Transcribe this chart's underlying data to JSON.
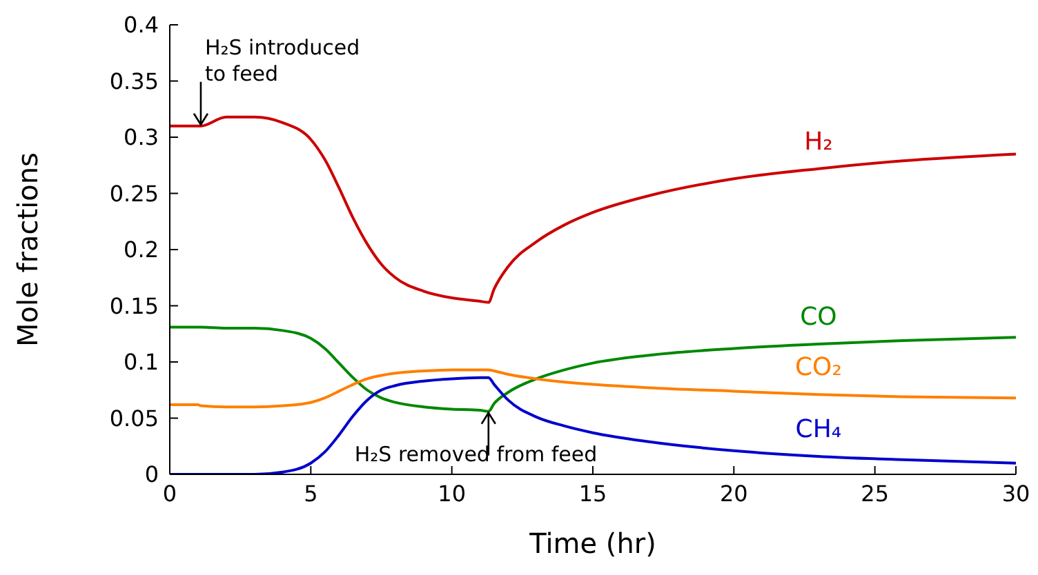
{
  "chart_data": {
    "type": "line",
    "xlabel": "Time (hr)",
    "ylabel": "Mole fractions",
    "x": [
      0,
      1,
      1.1,
      2,
      3,
      4,
      5,
      5.5,
      6,
      6.5,
      7,
      7.5,
      8,
      9,
      10,
      11,
      11.3,
      11.5,
      12,
      13,
      14,
      15,
      17,
      20,
      23,
      26,
      30
    ],
    "series": [
      {
        "name": "H₂",
        "color": "#cc0000",
        "values": [
          0.31,
          0.31,
          0.31,
          0.318,
          0.318,
          0.313,
          0.298,
          0.28,
          0.255,
          0.228,
          0.205,
          0.187,
          0.175,
          0.163,
          0.157,
          0.154,
          0.153,
          0.165,
          0.185,
          0.207,
          0.222,
          0.233,
          0.248,
          0.263,
          0.272,
          0.279,
          0.285
        ]
      },
      {
        "name": "CO",
        "color": "#008800",
        "values": [
          0.131,
          0.131,
          0.131,
          0.13,
          0.13,
          0.128,
          0.121,
          0.112,
          0.099,
          0.086,
          0.075,
          0.068,
          0.064,
          0.06,
          0.058,
          0.057,
          0.056,
          0.063,
          0.073,
          0.085,
          0.093,
          0.099,
          0.106,
          0.112,
          0.116,
          0.119,
          0.122
        ]
      },
      {
        "name": "CO₂",
        "color": "#ff7f00",
        "values": [
          0.062,
          0.062,
          0.061,
          0.06,
          0.06,
          0.061,
          0.064,
          0.068,
          0.074,
          0.08,
          0.085,
          0.088,
          0.09,
          0.092,
          0.093,
          0.093,
          0.093,
          0.092,
          0.089,
          0.085,
          0.082,
          0.08,
          0.077,
          0.074,
          0.071,
          0.069,
          0.068
        ]
      },
      {
        "name": "CH₄",
        "color": "#0000cc",
        "values": [
          0,
          0,
          0,
          0,
          0,
          0.002,
          0.01,
          0.02,
          0.035,
          0.052,
          0.066,
          0.075,
          0.079,
          0.083,
          0.085,
          0.086,
          0.086,
          0.08,
          0.066,
          0.051,
          0.043,
          0.037,
          0.029,
          0.021,
          0.016,
          0.013,
          0.01
        ]
      }
    ],
    "xlim": [
      0,
      30
    ],
    "xticks": [
      0,
      5,
      10,
      15,
      20,
      25,
      30
    ],
    "ylim": [
      0,
      0.4
    ],
    "yticks": [
      0,
      0.05,
      0.1,
      0.15,
      0.2,
      0.25,
      0.3,
      0.35,
      0.4
    ],
    "annotations": [
      {
        "text": "H₂S introduced\nto feed",
        "x": 1.1,
        "y": 0.31
      },
      {
        "text": "H₂S removed from feed",
        "x": 11.3,
        "y": 0.056
      }
    ],
    "grid": false,
    "legend": false,
    "marker": "none",
    "line_style": "solid"
  }
}
